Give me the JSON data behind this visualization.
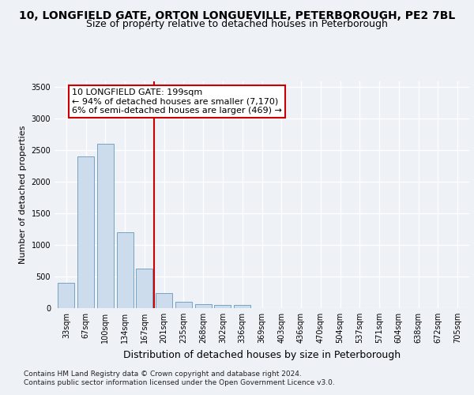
{
  "title_line1": "10, LONGFIELD GATE, ORTON LONGUEVILLE, PETERBOROUGH, PE2 7BL",
  "title_line2": "Size of property relative to detached houses in Peterborough",
  "xlabel": "Distribution of detached houses by size in Peterborough",
  "ylabel": "Number of detached properties",
  "footnote1": "Contains HM Land Registry data © Crown copyright and database right 2024.",
  "footnote2": "Contains public sector information licensed under the Open Government Licence v3.0.",
  "bar_labels": [
    "33sqm",
    "67sqm",
    "100sqm",
    "134sqm",
    "167sqm",
    "201sqm",
    "235sqm",
    "268sqm",
    "302sqm",
    "336sqm",
    "369sqm",
    "403sqm",
    "436sqm",
    "470sqm",
    "504sqm",
    "537sqm",
    "571sqm",
    "604sqm",
    "638sqm",
    "672sqm",
    "705sqm"
  ],
  "bar_values": [
    400,
    2400,
    2600,
    1200,
    630,
    240,
    105,
    60,
    55,
    50,
    0,
    0,
    0,
    0,
    0,
    0,
    0,
    0,
    0,
    0,
    0
  ],
  "bar_color": "#ccdcec",
  "bar_edgecolor": "#6699bb",
  "vline_color": "#cc0000",
  "annotation_text": "10 LONGFIELD GATE: 199sqm\n← 94% of detached houses are smaller (7,170)\n6% of semi-detached houses are larger (469) →",
  "ylim": [
    0,
    3600
  ],
  "yticks": [
    0,
    500,
    1000,
    1500,
    2000,
    2500,
    3000,
    3500
  ],
  "bg_color": "#eef2f7",
  "plot_bg_color": "#eef2f7",
  "grid_color": "#ffffff",
  "title_fontsize": 10,
  "subtitle_fontsize": 9,
  "ylabel_fontsize": 8,
  "xlabel_fontsize": 9,
  "tick_fontsize": 7,
  "annotation_fontsize": 8,
  "footnote_fontsize": 6.5
}
